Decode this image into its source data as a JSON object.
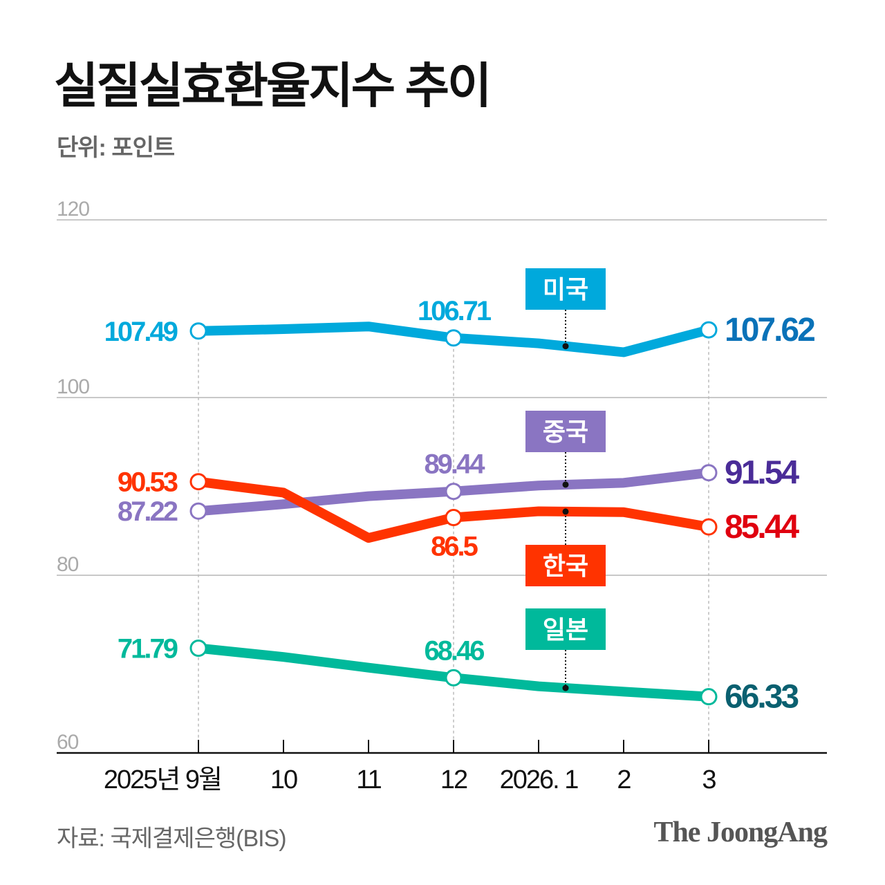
{
  "chart_data": {
    "type": "line",
    "title": "실질실효환율지수 추이",
    "unit_label": "단위: 포인트",
    "source": "자료: 국제결제은행(BIS)",
    "logo": "The JoongAng",
    "categories": [
      "2025년 9월",
      "10",
      "11",
      "12",
      "2026. 1",
      "2",
      "3"
    ],
    "ylim": [
      60,
      120
    ],
    "yticks": [
      "60",
      "80",
      "100",
      "120"
    ],
    "grid": true,
    "series": [
      {
        "name": "미국",
        "color": "#00a9dc",
        "end_color": "#0a72b8",
        "values": [
          107.49,
          107.7,
          108.0,
          106.71,
          106.1,
          105.1,
          107.62
        ],
        "labels": [
          "107.49",
          "",
          "",
          "106.71",
          "",
          "",
          "107.62"
        ]
      },
      {
        "name": "중국",
        "color": "#8a75c2",
        "end_color": "#4a2c98",
        "values": [
          87.22,
          88.0,
          88.9,
          89.44,
          90.1,
          90.4,
          91.54
        ],
        "labels": [
          "87.22",
          "",
          "",
          "89.44",
          "",
          "",
          "91.54"
        ]
      },
      {
        "name": "한국",
        "color": "#ff3300",
        "end_color": "#e0000f",
        "values": [
          90.53,
          89.3,
          84.2,
          86.5,
          87.2,
          87.1,
          85.44
        ],
        "labels": [
          "90.53",
          "",
          "",
          "86.5",
          "",
          "",
          "85.44"
        ]
      },
      {
        "name": "일본",
        "color": "#00b99b",
        "end_color": "#0a6070",
        "values": [
          71.79,
          70.8,
          69.6,
          68.46,
          67.5,
          66.9,
          66.33
        ],
        "labels": [
          "71.79",
          "",
          "",
          "68.46",
          "",
          "",
          "66.33"
        ]
      }
    ]
  }
}
